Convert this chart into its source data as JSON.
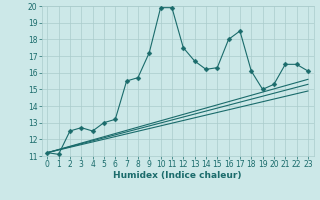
{
  "title": "",
  "xlabel": "Humidex (Indice chaleur)",
  "bg_color": "#cce8e8",
  "grid_color": "#aacccc",
  "line_color": "#1a6b6b",
  "xlim": [
    -0.5,
    23.5
  ],
  "ylim": [
    11,
    20
  ],
  "xticks": [
    0,
    1,
    2,
    3,
    4,
    5,
    6,
    7,
    8,
    9,
    10,
    11,
    12,
    13,
    14,
    15,
    16,
    17,
    18,
    19,
    20,
    21,
    22,
    23
  ],
  "yticks": [
    11,
    12,
    13,
    14,
    15,
    16,
    17,
    18,
    19,
    20
  ],
  "main_series": [
    [
      0,
      11.2
    ],
    [
      1,
      11.1
    ],
    [
      2,
      12.5
    ],
    [
      3,
      12.7
    ],
    [
      4,
      12.5
    ],
    [
      5,
      13.0
    ],
    [
      6,
      13.2
    ],
    [
      7,
      15.5
    ],
    [
      8,
      15.7
    ],
    [
      9,
      17.2
    ],
    [
      10,
      19.9
    ],
    [
      11,
      19.9
    ],
    [
      12,
      17.5
    ],
    [
      13,
      16.7
    ],
    [
      14,
      16.2
    ],
    [
      15,
      16.3
    ],
    [
      16,
      18.0
    ],
    [
      17,
      18.5
    ],
    [
      18,
      16.1
    ],
    [
      19,
      15.0
    ],
    [
      20,
      15.3
    ],
    [
      21,
      16.5
    ],
    [
      22,
      16.5
    ],
    [
      23,
      16.1
    ]
  ],
  "linear_series_1": [
    [
      0,
      11.2
    ],
    [
      23,
      15.3
    ]
  ],
  "linear_series_2": [
    [
      0,
      11.2
    ],
    [
      23,
      14.9
    ]
  ],
  "linear_series_3": [
    [
      0,
      11.2
    ],
    [
      23,
      15.6
    ]
  ],
  "markersize": 2.5,
  "linewidth": 0.8,
  "tick_fontsize": 5.5,
  "xlabel_fontsize": 6.5
}
